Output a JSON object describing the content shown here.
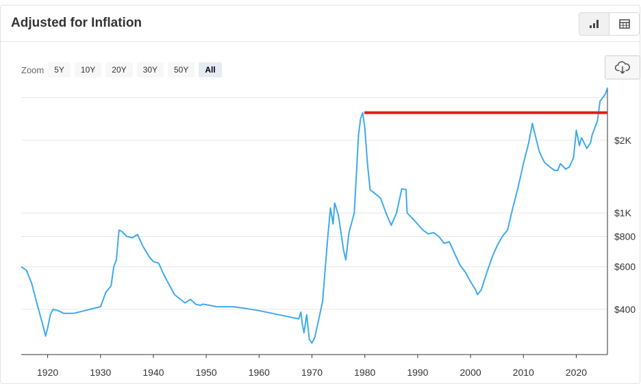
{
  "header": {
    "title": "Adjusted for Inflation"
  },
  "view_toggle": {
    "chart_icon": "bar-chart-icon",
    "table_icon": "table-icon"
  },
  "zoom": {
    "label": "Zoom",
    "options": [
      "5Y",
      "10Y",
      "20Y",
      "30Y",
      "50Y",
      "All"
    ],
    "active": "All"
  },
  "download": {
    "icon": "cloud-download-icon"
  },
  "colors": {
    "line": "#3ba9f0",
    "reference_line": "#e01b1b",
    "grid": "#e6e6e6"
  },
  "chart_data": {
    "type": "line",
    "title": "Adjusted for Inflation",
    "xlabel": "",
    "ylabel": "",
    "y_scale": "log",
    "x_ticks": [
      "1920",
      "1930",
      "1940",
      "1950",
      "1960",
      "1970",
      "1980",
      "1990",
      "2000",
      "2010",
      "2020"
    ],
    "y_ticks": [
      "$400",
      "$600",
      "$800",
      "$1K",
      "$2K"
    ],
    "ylim": [
      260,
      3300
    ],
    "xlim": [
      1915,
      2025.9
    ],
    "grid": "horizontal",
    "series": [
      {
        "x": [
          1915,
          1916,
          1917,
          1918,
          1919,
          1919.6,
          1920,
          1920.5,
          1921,
          1922,
          1923,
          1925,
          1928,
          1930,
          1931,
          1932,
          1932.5,
          1933,
          1933.5,
          1934,
          1935,
          1936,
          1937,
          1938,
          1939.3,
          1940,
          1941,
          1942,
          1943,
          1944,
          1946,
          1947,
          1948,
          1948.9,
          1949.3,
          1950,
          1952,
          1955,
          1957,
          1960,
          1965,
          1967.5,
          1967.9,
          1968.2,
          1968.5,
          1969,
          1969.5,
          1970,
          1970.5,
          1971,
          1972,
          1973,
          1973.5,
          1974,
          1974.3,
          1975,
          1976,
          1976.4,
          1977,
          1978,
          1978.8,
          1979.2,
          1979.6,
          1980,
          1980.5,
          1981,
          1982,
          1983,
          1984,
          1985,
          1986,
          1987,
          1987.8,
          1988,
          1989,
          1990,
          1991,
          1992,
          1993,
          1994,
          1995,
          1996,
          1997,
          1998,
          1999,
          2000,
          2001,
          2001.3,
          2002,
          2003,
          2004,
          2005,
          2006,
          2007,
          2008,
          2009,
          2010,
          2011,
          2011.7,
          2012,
          2013,
          2013.5,
          2014,
          2015,
          2015.9,
          2016.5,
          2017,
          2018,
          2018.7,
          2019.5,
          2020,
          2020.6,
          2021,
          2022,
          2022.7,
          2023,
          2024,
          2024.5,
          2025,
          2025.5,
          2025.9
        ],
        "values": [
          600,
          580,
          510,
          420,
          350,
          310,
          335,
          380,
          400,
          395,
          385,
          385,
          400,
          410,
          470,
          500,
          600,
          640,
          850,
          840,
          800,
          790,
          815,
          730,
          655,
          630,
          620,
          555,
          505,
          460,
          425,
          440,
          420,
          415,
          420,
          418,
          410,
          410,
          405,
          395,
          375,
          365,
          390,
          345,
          320,
          380,
          300,
          290,
          305,
          340,
          430,
          800,
          1050,
          900,
          1100,
          980,
          700,
          640,
          830,
          1000,
          2100,
          2450,
          2600,
          2250,
          1600,
          1250,
          1200,
          1150,
          1000,
          890,
          1000,
          1260,
          1250,
          1000,
          950,
          900,
          850,
          820,
          830,
          800,
          750,
          760,
          680,
          610,
          570,
          520,
          480,
          460,
          480,
          560,
          650,
          730,
          800,
          850,
          1050,
          1280,
          1600,
          1950,
          2350,
          2200,
          1800,
          1700,
          1620,
          1550,
          1500,
          1500,
          1600,
          1520,
          1550,
          1700,
          2200,
          1900,
          2050,
          1850,
          1950,
          2100,
          2400,
          2900,
          3000,
          3100,
          3300
        ]
      }
    ],
    "reference_line": {
      "y": 2600,
      "x_start": 1979.9,
      "x_end": 2025.9
    }
  }
}
